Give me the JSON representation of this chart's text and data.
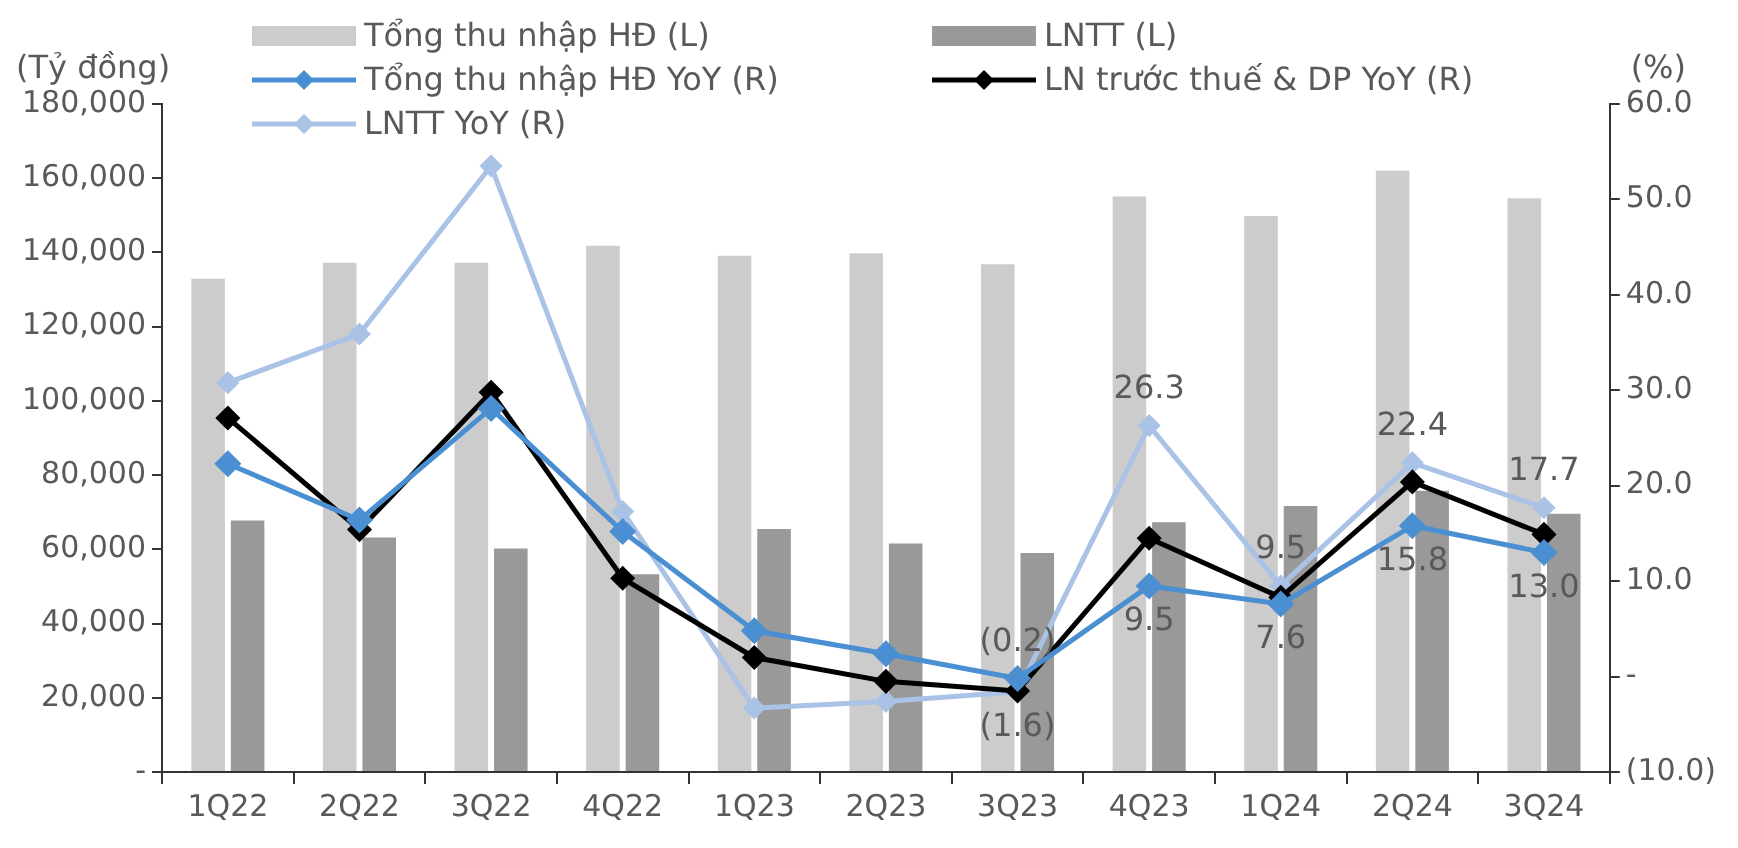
{
  "chart_data": {
    "type": "bar",
    "ylabel": "(Tỷ đồng)",
    "y2label": "(%)",
    "categories": [
      "1Q22",
      "2Q22",
      "3Q22",
      "4Q22",
      "1Q23",
      "2Q23",
      "3Q23",
      "4Q23",
      "1Q24",
      "2Q24",
      "3Q24"
    ],
    "series": [
      {
        "name": "Tổng thu nhập HĐ (L)",
        "color": "#cccccc",
        "values": [
          132900,
          137200,
          137200,
          141800,
          139100,
          139800,
          136800,
          155100,
          149800,
          162000,
          154600
        ]
      },
      {
        "name": "LNTT (L)",
        "color": "#999999",
        "values": [
          67800,
          63200,
          60200,
          53300,
          65500,
          61600,
          59000,
          67300,
          71700,
          75800,
          69600
        ]
      },
      {
        "name": "Tổng thu nhập HĐ YoY (R)",
        "type": "line",
        "axis": "y2",
        "color": "#4a8fd1",
        "marker": "diamond",
        "values": [
          22.3,
          16.4,
          28.1,
          15.2,
          4.8,
          2.4,
          -0.2,
          9.5,
          7.6,
          15.8,
          13.0
        ],
        "value_labels": [
          null,
          null,
          null,
          null,
          null,
          null,
          "(0.2)",
          "9.5",
          "7.6",
          "15.8",
          "13.0"
        ]
      },
      {
        "name": "LN trước thuế & DP YoY (R)",
        "type": "line",
        "axis": "y2",
        "color": "#000000",
        "marker": "diamond",
        "values": [
          27.1,
          15.4,
          29.8,
          10.3,
          2.0,
          -0.5,
          -1.5,
          14.5,
          8.3,
          20.4,
          14.9
        ]
      },
      {
        "name": "LNTT YoY (R)",
        "type": "line",
        "axis": "y2",
        "color": "#a9c2e6",
        "marker": "diamond",
        "values": [
          30.8,
          35.9,
          53.5,
          17.3,
          -3.3,
          -2.6,
          -1.6,
          26.3,
          9.5,
          22.4,
          17.7
        ],
        "value_labels": [
          null,
          null,
          null,
          null,
          null,
          null,
          "(1.6)",
          "26.3",
          "9.5",
          "22.4",
          "17.7"
        ]
      }
    ],
    "ylim": [
      0,
      180000
    ],
    "yticks": [
      {
        "value": 0,
        "label": "-"
      },
      {
        "value": 20000,
        "label": "20,000"
      },
      {
        "value": 40000,
        "label": "40,000"
      },
      {
        "value": 60000,
        "label": "60,000"
      },
      {
        "value": 80000,
        "label": "80,000"
      },
      {
        "value": 100000,
        "label": "100,000"
      },
      {
        "value": 120000,
        "label": "120,000"
      },
      {
        "value": 140000,
        "label": "140,000"
      },
      {
        "value": 160000,
        "label": "160,000"
      },
      {
        "value": 180000,
        "label": "180,000"
      }
    ],
    "y2lim": [
      -10,
      60
    ],
    "y2ticks": [
      {
        "value": -10,
        "label": "(10.0)"
      },
      {
        "value": 0,
        "label": "-"
      },
      {
        "value": 10,
        "label": "10.0"
      },
      {
        "value": 20,
        "label": "20.0"
      },
      {
        "value": 30,
        "label": "30.0"
      },
      {
        "value": 40,
        "label": "40.0"
      },
      {
        "value": 50,
        "label": "50.0"
      },
      {
        "value": 60,
        "label": "60.0"
      }
    ],
    "grid": false,
    "legend": "top"
  }
}
